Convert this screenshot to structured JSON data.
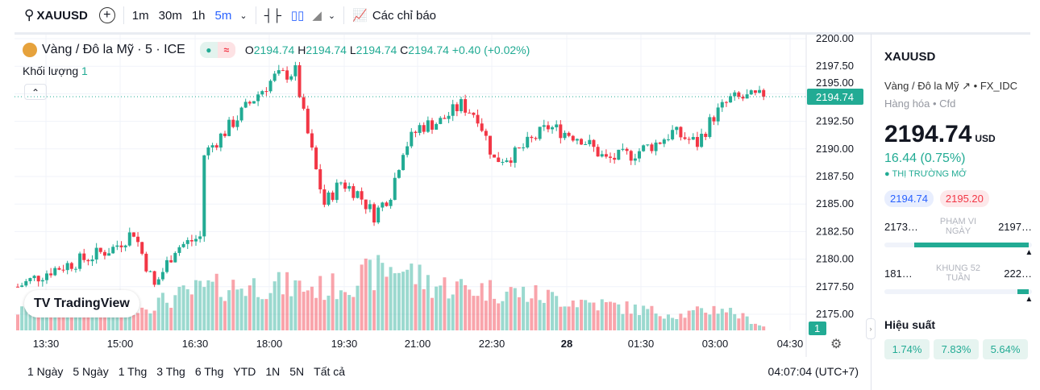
{
  "toolbar": {
    "symbol": "XAUUSD",
    "intervals": [
      "1m",
      "30m",
      "1h",
      "5m"
    ],
    "active_interval": "5m",
    "indicators": "Các chỉ báo"
  },
  "legend": {
    "title": "Vàng / Đô la Mỹ · 5 · ICE",
    "o_label": "O",
    "o": "2194.74",
    "h_label": "H",
    "h": "2194.74",
    "l_label": "L",
    "l": "2194.74",
    "c_label": "C",
    "c": "2194.74",
    "change": "+0.40 (+0.02%)",
    "volume_label": "Khối lượng",
    "volume_value": "1"
  },
  "watermark": "TradingView",
  "price_axis": {
    "ticks": [
      "2200.00",
      "2197.50",
      "2195.00",
      "2192.50",
      "2190.00",
      "2187.50",
      "2185.00",
      "2182.50",
      "2180.00",
      "2177.50",
      "2175.00"
    ],
    "last_price": "2194.74",
    "volume_badge": "1"
  },
  "time_axis": [
    "13:30",
    "15:00",
    "16:30",
    "18:00",
    "19:30",
    "21:00",
    "22:30",
    "28",
    "01:30",
    "03:00",
    "04:30"
  ],
  "range_bar": {
    "ranges": [
      "1 Ngày",
      "5 Ngày",
      "1 Thg",
      "3 Thg",
      "6 Thg",
      "YTD",
      "1N",
      "5N",
      "Tất cả"
    ],
    "clock": "04:07:04 (UTC+7)"
  },
  "colors": {
    "up": "#22ab94",
    "down": "#f23645",
    "accent": "#2962ff"
  },
  "chart_data": {
    "type": "candlestick",
    "price_range": [
      2175,
      2200
    ],
    "candle_count": 181,
    "close_keypoints": [
      [
        0,
        2177.5
      ],
      [
        8,
        2179
      ],
      [
        16,
        2180
      ],
      [
        23,
        2181
      ],
      [
        28,
        2182.5
      ],
      [
        33,
        2177.5
      ],
      [
        38,
        2181
      ],
      [
        44,
        2182
      ],
      [
        45,
        2189.5
      ],
      [
        51,
        2192
      ],
      [
        58,
        2195
      ],
      [
        62,
        2196.5
      ],
      [
        67,
        2197
      ],
      [
        69,
        2193
      ],
      [
        72,
        2188
      ],
      [
        74,
        2185
      ],
      [
        78,
        2187
      ],
      [
        82,
        2186
      ],
      [
        86,
        2184
      ],
      [
        90,
        2186
      ],
      [
        93,
        2190
      ],
      [
        97,
        2192
      ],
      [
        102,
        2192.5
      ],
      [
        107,
        2194
      ],
      [
        111,
        2193
      ],
      [
        115,
        2189
      ],
      [
        120,
        2189.5
      ],
      [
        128,
        2192
      ],
      [
        136,
        2191
      ],
      [
        142,
        2189
      ],
      [
        148,
        2189.5
      ],
      [
        154,
        2190.5
      ],
      [
        158,
        2191.5
      ],
      [
        164,
        2190.5
      ],
      [
        168,
        2193
      ],
      [
        172,
        2194.5
      ],
      [
        180,
        2194.74
      ]
    ],
    "volume_keypoints": [
      [
        0,
        0.25
      ],
      [
        30,
        0.3
      ],
      [
        45,
        0.55
      ],
      [
        60,
        0.6
      ],
      [
        75,
        0.55
      ],
      [
        92,
        0.85
      ],
      [
        100,
        0.6
      ],
      [
        120,
        0.5
      ],
      [
        140,
        0.35
      ],
      [
        160,
        0.2
      ],
      [
        170,
        0.3
      ],
      [
        180,
        0.05
      ]
    ]
  },
  "side": {
    "symbol": "XAUUSD",
    "name": "Vàng / Đô la Mỹ",
    "exchange": "FX_IDC",
    "category": "Hàng hóa",
    "type": "Cfd",
    "price": "2194.74",
    "currency": "USD",
    "change": "16.44 (0.75%)",
    "status": "THỊ TRƯỜNG MỞ",
    "bid": "2194.74",
    "ask": "2195.20",
    "day_range": {
      "low": "2173…",
      "label": "PHẠM VI NGÀY",
      "high": "2197…",
      "fill_from": 0.2,
      "fill_to": 0.98,
      "marker": 0.98
    },
    "week52": {
      "low": "181…",
      "label": "KHUNG 52 TUẦN",
      "high": "222…",
      "fill_from": 0.9,
      "fill_to": 0.98,
      "marker": 0.98
    },
    "perf_title": "Hiệu suất",
    "perf": [
      "1.74%",
      "7.83%",
      "5.64%"
    ]
  }
}
